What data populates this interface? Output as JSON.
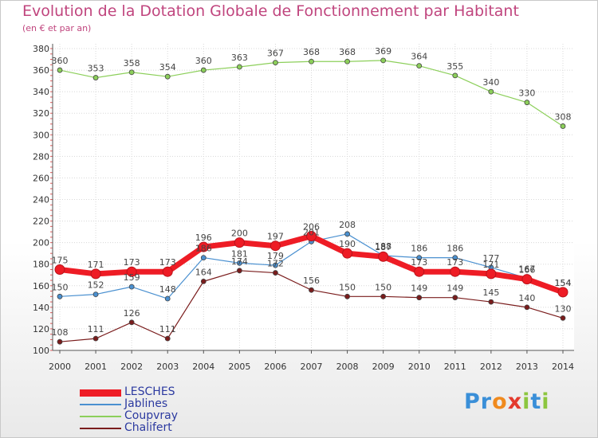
{
  "header": {
    "title": "Evolution de la Dotation Globale de Fonctionnement par Habitant",
    "subtitle": "(en € et par an)"
  },
  "logo": {
    "text": "Proxiti",
    "letters": [
      {
        "ch": "P",
        "color": "#3a8fd8"
      },
      {
        "ch": "r",
        "color": "#3a8fd8"
      },
      {
        "ch": "o",
        "color": "#f08a1e"
      },
      {
        "ch": "x",
        "color": "#e33a2d"
      },
      {
        "ch": "i",
        "color": "#8cc63f"
      },
      {
        "ch": "t",
        "color": "#3a8fd8"
      },
      {
        "ch": "i",
        "color": "#8cc63f"
      }
    ]
  },
  "chart_data": {
    "type": "line",
    "title": "Evolution de la Dotation Globale de Fonctionnement par Habitant",
    "subtitle": "(en € et par an)",
    "xlabel": "",
    "ylabel": "",
    "x": [
      "2000",
      "2001",
      "2002",
      "2003",
      "2004",
      "2005",
      "2006",
      "2007",
      "2008",
      "2009",
      "2010",
      "2011",
      "2012",
      "2013",
      "2014"
    ],
    "ylim": [
      100,
      380
    ],
    "yticks": [
      100,
      120,
      140,
      160,
      180,
      200,
      220,
      240,
      260,
      280,
      300,
      320,
      340,
      360,
      380
    ],
    "grid": true,
    "legend_position": "bottom-left",
    "series": [
      {
        "name": "LESCHES",
        "color": "#ee1c25",
        "values": [
          175,
          171,
          173,
          173,
          196,
          200,
          197,
          206,
          190,
          187,
          173,
          173,
          171,
          166,
          154
        ]
      },
      {
        "name": "Jablines",
        "color": "#4a90d0",
        "values": [
          150,
          152,
          159,
          148,
          186,
          181,
          179,
          201,
          208,
          188,
          186,
          186,
          177,
          167,
          154
        ]
      },
      {
        "name": "Coupvray",
        "color": "#8ccf5a",
        "values": [
          360,
          353,
          358,
          354,
          360,
          363,
          367,
          368,
          368,
          369,
          364,
          355,
          340,
          330,
          308
        ]
      },
      {
        "name": "Chalifert",
        "color": "#7a1c1c",
        "values": [
          108,
          111,
          126,
          111,
          164,
          174,
          172,
          156,
          150,
          150,
          149,
          149,
          145,
          140,
          130
        ]
      }
    ]
  }
}
